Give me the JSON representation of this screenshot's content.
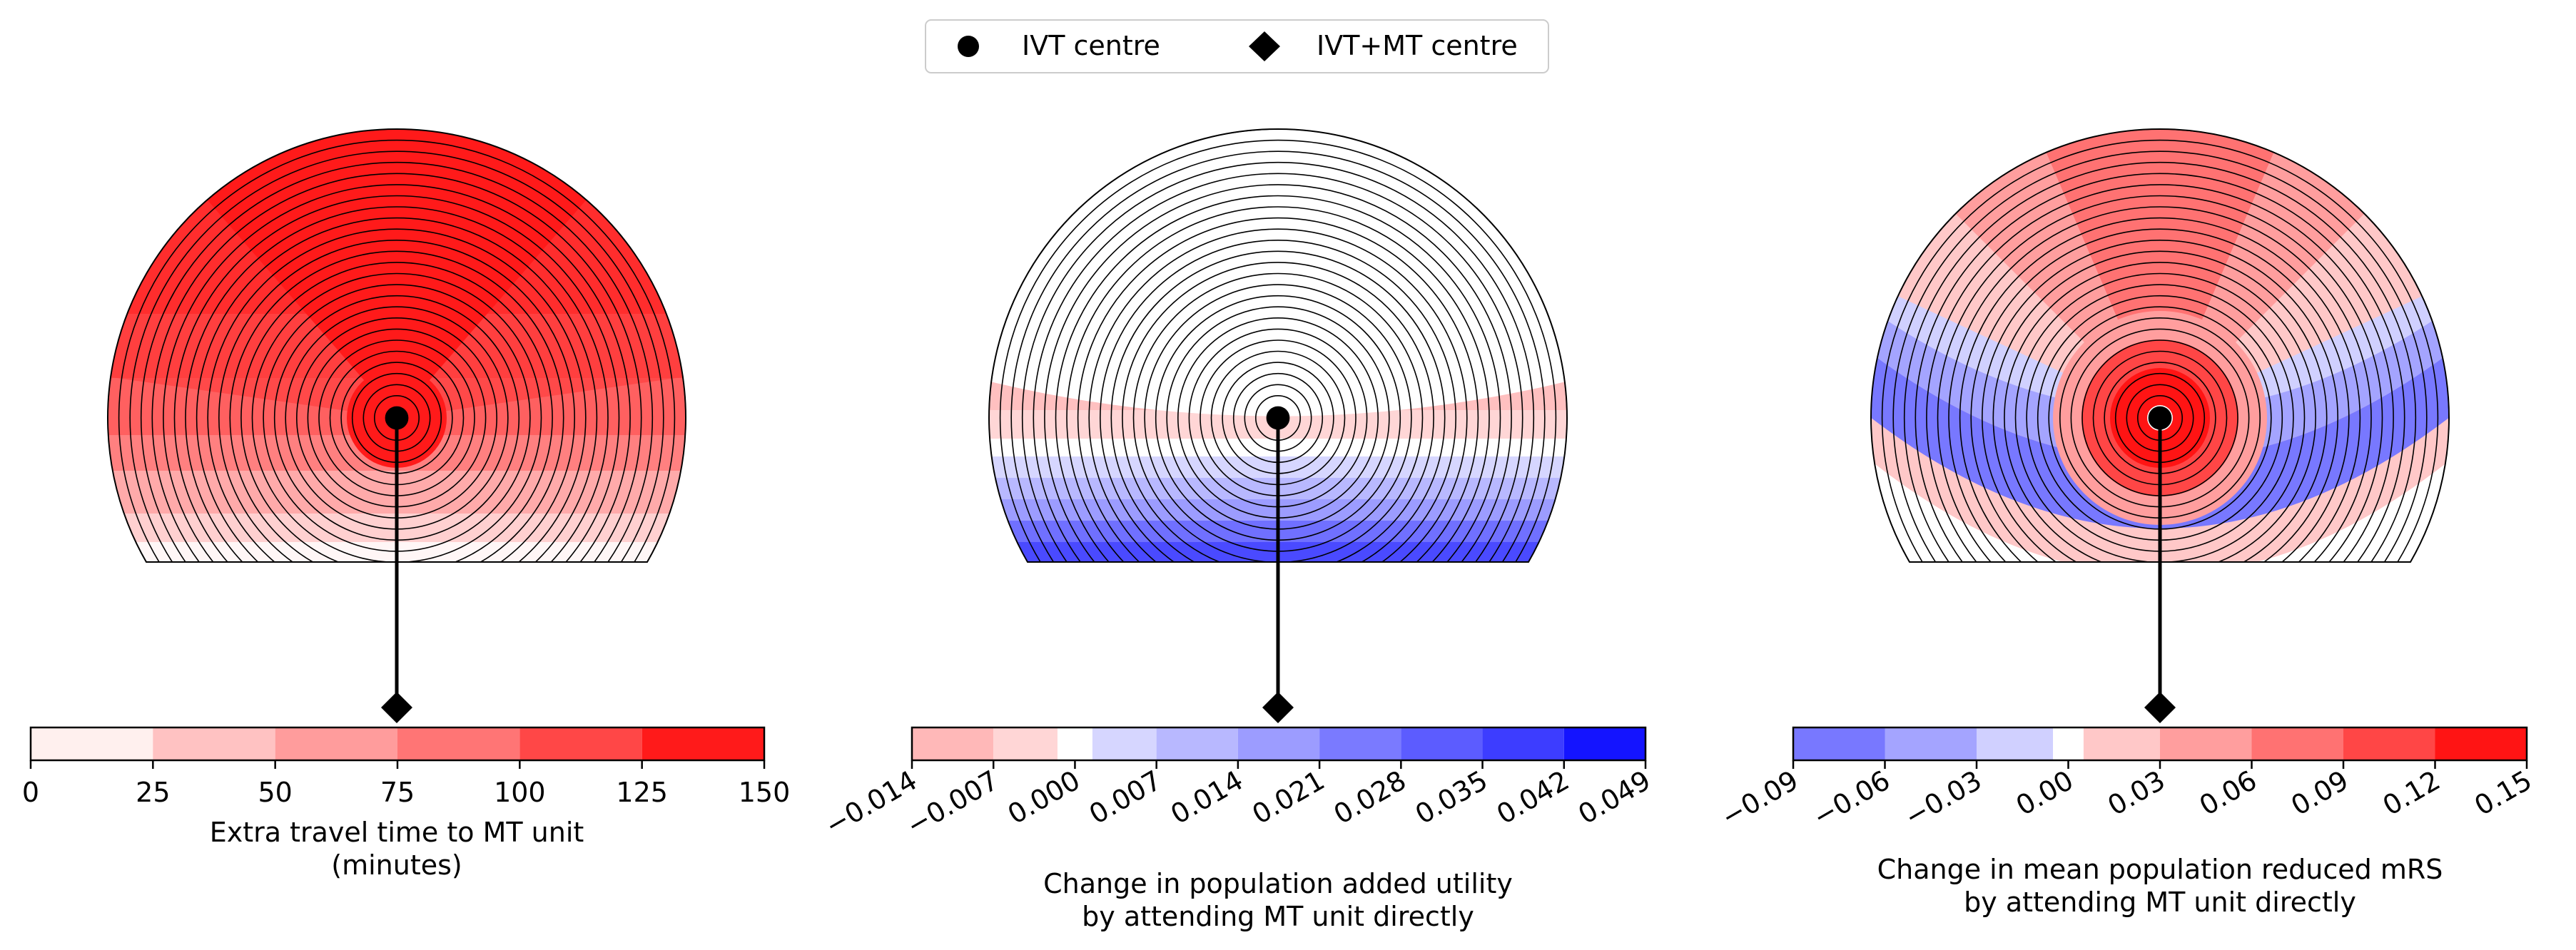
{
  "legend": {
    "items": [
      {
        "label": "IVT centre",
        "marker": "circle"
      },
      {
        "label": "IVT+MT centre",
        "marker": "diamond"
      }
    ],
    "placement": "top-center"
  },
  "chart_data": [
    {
      "type": "heatmap",
      "description": "Polar-sector map around IVT centre; colour = extra travel time",
      "colorbar": {
        "label_line1": "Extra travel time to MT unit",
        "label_line2": "(minutes)",
        "ticks": [
          "0",
          "25",
          "50",
          "75",
          "100",
          "125",
          "150"
        ],
        "range": [
          0,
          150
        ],
        "bins": [
          {
            "from": 0,
            "to": 25,
            "color": "#fff0ee"
          },
          {
            "from": 25,
            "to": 50,
            "color": "#ffc2c2"
          },
          {
            "from": 50,
            "to": 75,
            "color": "#ff9c9c"
          },
          {
            "from": 75,
            "to": 100,
            "color": "#ff7575"
          },
          {
            "from": 100,
            "to": 125,
            "color": "#ff4747"
          },
          {
            "from": 125,
            "to": 150,
            "color": "#ff1a1a"
          }
        ]
      },
      "sectors": [
        {
          "r_from": 0.0,
          "r_to": 0.15,
          "color": "#ff1a1a"
        },
        {
          "r_from": 0.15,
          "r_to": 0.35,
          "color": "#ff4747"
        },
        {
          "r_from": 0.35,
          "r_to": 0.6,
          "color": "#ff7575"
        },
        {
          "r_from": 0.6,
          "r_to": 0.82,
          "color": "#ff9c9c"
        },
        {
          "r_from": 0.82,
          "r_to": 1.0,
          "color": "#ffc2c2"
        }
      ]
    },
    {
      "type": "heatmap",
      "description": "Polar-sector map around IVT centre; colour = change in added utility",
      "colorbar": {
        "label_line1": "Change in population added utility",
        "label_line2": "by attending MT unit directly",
        "ticks": [
          "−0.014",
          "−0.007",
          "0.000",
          "0.007",
          "0.014",
          "0.021",
          "0.028",
          "0.035",
          "0.042",
          "0.049"
        ],
        "range": [
          -0.014,
          0.049
        ],
        "bins": [
          {
            "from": -0.014,
            "to": -0.007,
            "color": "#ffb8b8"
          },
          {
            "from": -0.007,
            "to": -0.0015,
            "color": "#ffd6d6"
          },
          {
            "from": -0.0015,
            "to": 0.0015,
            "color": "#ffffff"
          },
          {
            "from": 0.0015,
            "to": 0.007,
            "color": "#d6d6ff"
          },
          {
            "from": 0.007,
            "to": 0.014,
            "color": "#b8b8ff"
          },
          {
            "from": 0.014,
            "to": 0.021,
            "color": "#9c9cff"
          },
          {
            "from": 0.021,
            "to": 0.028,
            "color": "#7a7aff"
          },
          {
            "from": 0.028,
            "to": 0.035,
            "color": "#5c5cff"
          },
          {
            "from": 0.035,
            "to": 0.042,
            "color": "#3d3dff"
          },
          {
            "from": 0.042,
            "to": 0.049,
            "color": "#1414ff"
          }
        ]
      }
    },
    {
      "type": "heatmap",
      "description": "Polar-sector map around IVT centre; colour = change in mean reduced mRS",
      "colorbar": {
        "label_line1": "Change in mean population reduced mRS",
        "label_line2": "by attending MT unit directly",
        "ticks": [
          "−0.09",
          "−0.06",
          "−0.03",
          "0.00",
          "0.03",
          "0.06",
          "0.09",
          "0.12",
          "0.15"
        ],
        "range": [
          -0.09,
          0.15
        ],
        "bins": [
          {
            "from": -0.09,
            "to": -0.06,
            "color": "#7878ff"
          },
          {
            "from": -0.06,
            "to": -0.03,
            "color": "#a4a4ff"
          },
          {
            "from": -0.03,
            "to": -0.005,
            "color": "#d0d0ff"
          },
          {
            "from": -0.005,
            "to": 0.005,
            "color": "#ffffff"
          },
          {
            "from": 0.005,
            "to": 0.03,
            "color": "#ffc8c8"
          },
          {
            "from": 0.03,
            "to": 0.06,
            "color": "#ff9e9e"
          },
          {
            "from": 0.06,
            "to": 0.09,
            "color": "#ff7272"
          },
          {
            "from": 0.09,
            "to": 0.12,
            "color": "#ff4646"
          },
          {
            "from": 0.12,
            "to": 0.15,
            "color": "#ff1414"
          }
        ]
      }
    }
  ]
}
